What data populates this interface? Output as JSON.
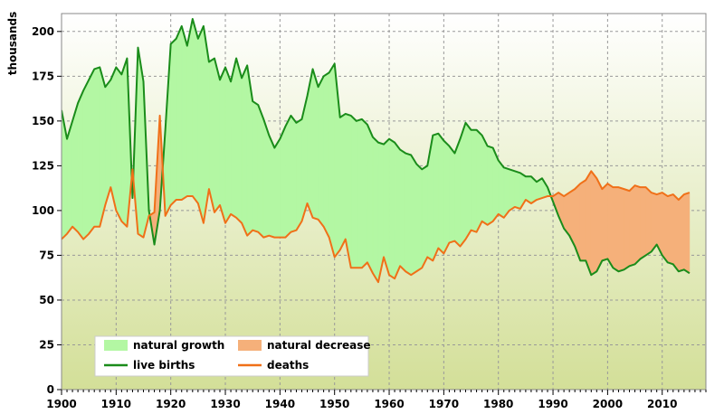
{
  "chart_data": {
    "type": "area",
    "ylabel": "thousands",
    "xlim": [
      1900,
      2018
    ],
    "ylim": [
      0,
      210
    ],
    "x_ticks": [
      1900,
      1910,
      1920,
      1930,
      1940,
      1950,
      1960,
      1970,
      1980,
      1990,
      2000,
      2010
    ],
    "y_ticks": [
      0,
      25,
      50,
      75,
      100,
      125,
      150,
      175,
      200
    ],
    "grid": true,
    "legend_position": "bottom-left",
    "legend": [
      {
        "label": "natural growth",
        "kind": "area",
        "color": "#b3f7a3"
      },
      {
        "label": "natural decrease",
        "kind": "area",
        "color": "#f5b07a"
      },
      {
        "label": "live births",
        "kind": "line",
        "color": "#1a8c1a"
      },
      {
        "label": "deaths",
        "kind": "line",
        "color": "#f07018"
      }
    ],
    "x": [
      1900,
      1901,
      1902,
      1903,
      1904,
      1905,
      1906,
      1907,
      1908,
      1909,
      1910,
      1911,
      1912,
      1913,
      1914,
      1915,
      1916,
      1917,
      1918,
      1919,
      1920,
      1921,
      1922,
      1923,
      1924,
      1925,
      1926,
      1927,
      1928,
      1929,
      1930,
      1931,
      1932,
      1933,
      1934,
      1935,
      1936,
      1937,
      1938,
      1939,
      1940,
      1941,
      1942,
      1943,
      1944,
      1945,
      1946,
      1947,
      1948,
      1949,
      1950,
      1951,
      1952,
      1953,
      1954,
      1955,
      1956,
      1957,
      1958,
      1959,
      1960,
      1961,
      1962,
      1963,
      1964,
      1965,
      1966,
      1967,
      1968,
      1969,
      1970,
      1971,
      1972,
      1973,
      1974,
      1975,
      1976,
      1977,
      1978,
      1979,
      1980,
      1981,
      1982,
      1983,
      1984,
      1985,
      1986,
      1987,
      1988,
      1989,
      1990,
      1991,
      1992,
      1993,
      1994,
      1995,
      1996,
      1997,
      1998,
      1999,
      2000,
      2001,
      2002,
      2003,
      2004,
      2005,
      2006,
      2007,
      2008,
      2009,
      2010,
      2011,
      2012,
      2013,
      2014,
      2015
    ],
    "series": [
      {
        "name": "live births",
        "color": "#1a8c1a",
        "values": [
          156,
          140,
          150,
          160,
          167,
          173,
          179,
          180,
          169,
          173,
          180,
          176,
          185,
          107,
          191,
          172,
          100,
          81,
          100,
          145,
          193,
          196,
          203,
          192,
          207,
          196,
          203,
          183,
          185,
          173,
          180,
          172,
          185,
          174,
          181,
          161,
          159,
          151,
          142,
          135,
          140,
          147,
          153,
          149,
          151,
          164,
          179,
          169,
          175,
          177,
          182,
          152,
          154,
          153,
          150,
          151,
          148,
          141,
          138,
          137,
          140,
          138,
          134,
          132,
          131,
          126,
          123,
          125,
          142,
          143,
          139,
          136,
          132,
          140,
          149,
          145,
          145,
          142,
          136,
          135,
          128,
          124,
          123,
          122,
          121,
          119,
          119,
          116,
          118,
          113,
          105,
          97,
          90,
          86,
          80,
          72,
          72,
          64,
          66,
          72,
          73,
          68,
          66,
          67,
          69,
          70,
          73,
          75,
          77,
          81,
          75,
          71,
          70,
          66,
          67,
          65
        ]
      },
      {
        "name": "deaths",
        "color": "#f07018",
        "values": [
          84,
          87,
          91,
          88,
          84,
          87,
          91,
          91,
          103,
          113,
          100,
          94,
          91,
          123,
          87,
          85,
          97,
          99,
          153,
          97,
          103,
          106,
          106,
          108,
          108,
          104,
          93,
          112,
          99,
          103,
          93,
          98,
          96,
          93,
          86,
          89,
          88,
          85,
          86,
          85,
          85,
          85,
          88,
          89,
          94,
          104,
          96,
          95,
          91,
          85,
          74,
          78,
          84,
          68,
          68,
          68,
          71,
          65,
          60,
          74,
          64,
          62,
          69,
          66,
          64,
          66,
          68,
          74,
          72,
          79,
          76,
          82,
          83,
          80,
          84,
          89,
          88,
          94,
          92,
          94,
          98,
          96,
          100,
          102,
          101,
          106,
          104,
          106,
          107,
          108,
          108,
          110,
          108,
          110,
          112,
          115,
          117,
          122,
          118,
          112,
          115,
          113,
          113,
          112,
          111,
          114,
          113,
          113,
          110,
          109,
          110,
          108,
          109,
          106,
          109,
          110
        ]
      }
    ]
  }
}
